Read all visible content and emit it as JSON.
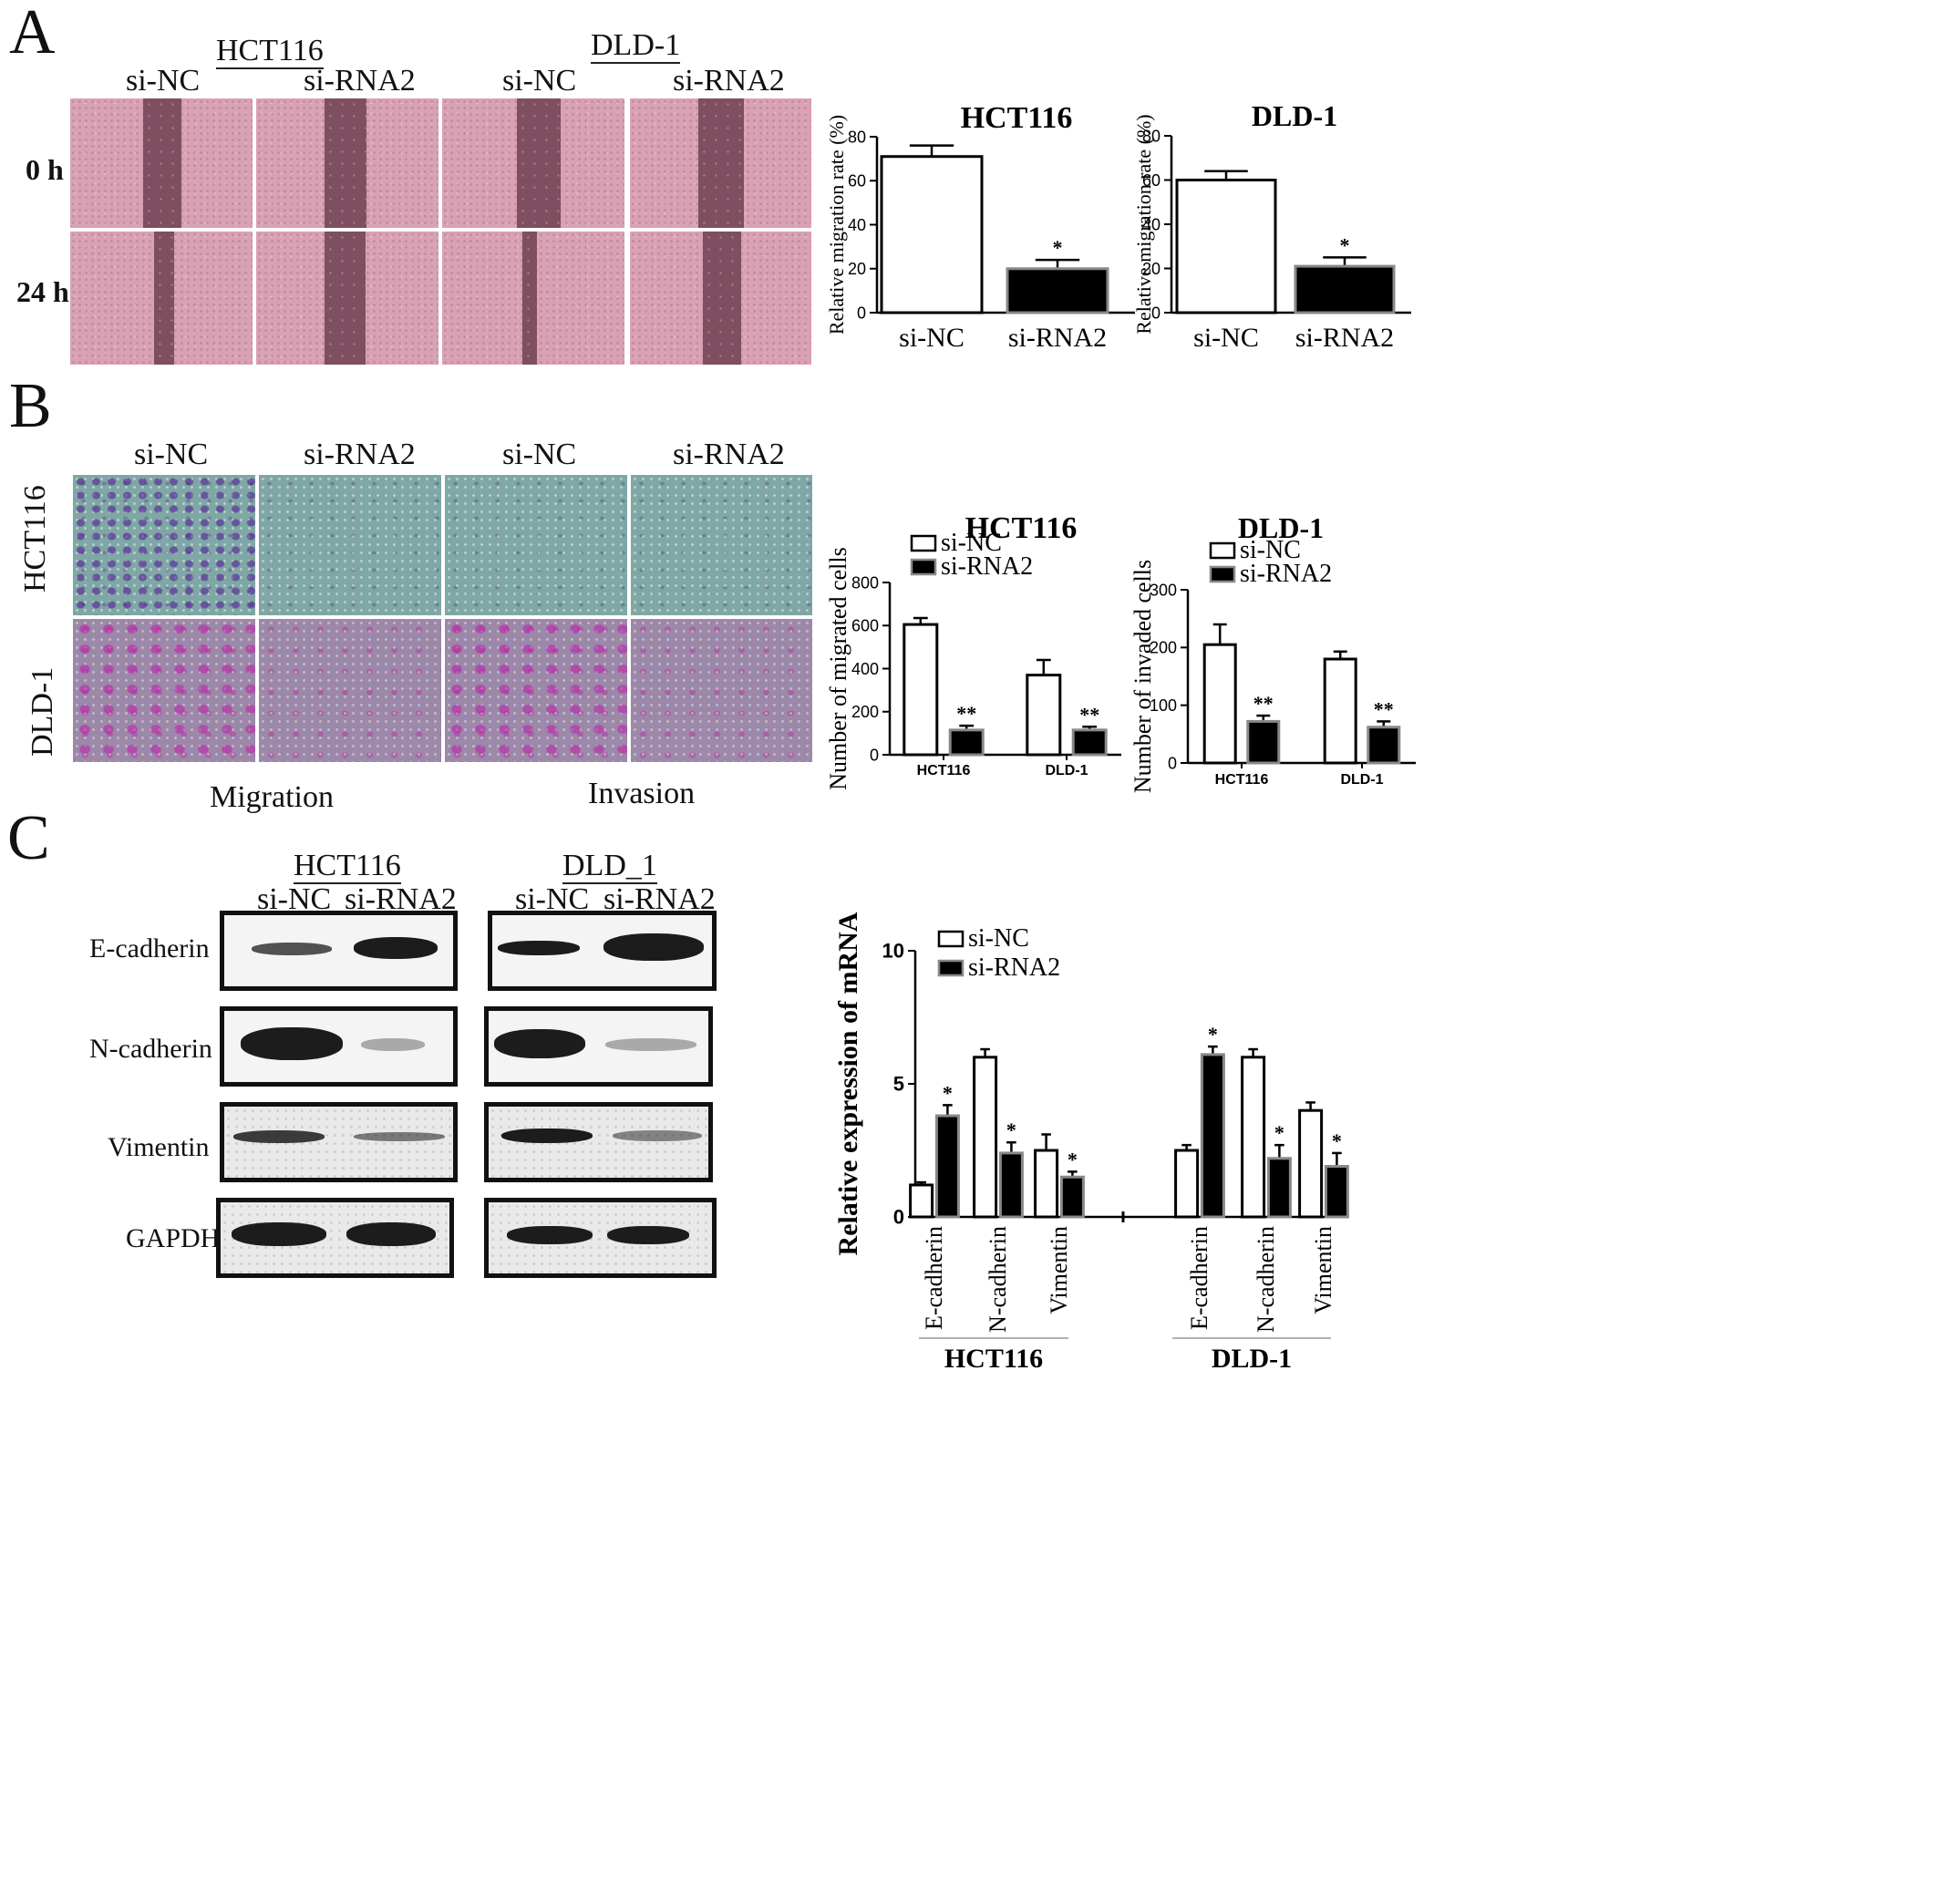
{
  "panelA": {
    "letter": "A",
    "group1": "HCT116",
    "group2": "DLD-1",
    "col_labels": [
      "si-NC",
      "si-RNA2",
      "si-NC",
      "si-RNA2"
    ],
    "row_labels": [
      "0 h",
      "24 h"
    ]
  },
  "panelB": {
    "letter": "B",
    "col_labels": [
      "si-NC",
      "si-RNA2",
      "si-NC",
      "si-RNA2"
    ],
    "row_labels": [
      "HCT116",
      "DLD-1"
    ],
    "bottom_labels": [
      "Migration",
      "Invasion"
    ]
  },
  "panelC": {
    "letter": "C",
    "group1": "HCT116",
    "group2": "DLD_1",
    "col_labels": [
      "si-NC",
      "si-RNA2",
      "si-NC",
      "si-RNA2"
    ],
    "proteins": [
      "E-cadherin",
      "N-cadherin",
      "Vimentin",
      "GAPDH"
    ]
  },
  "chart_data": [
    {
      "type": "bar",
      "title": "HCT116",
      "ylabel": "Relative migration rate (%)",
      "categories": [
        "si-NC",
        "si-RNA2"
      ],
      "values": [
        71,
        20
      ],
      "errors": [
        5,
        4
      ],
      "bar_colors": [
        "#ffffff",
        "#000000"
      ],
      "annotations": [
        "",
        "*"
      ],
      "ylim": [
        0,
        80
      ],
      "yticks": [
        "0",
        "20",
        "40",
        "60",
        "80"
      ]
    },
    {
      "type": "bar",
      "title": "DLD-1",
      "ylabel": "Relative migration rate (%)",
      "categories": [
        "si-NC",
        "si-RNA2"
      ],
      "values": [
        60,
        21
      ],
      "errors": [
        4,
        4
      ],
      "bar_colors": [
        "#ffffff",
        "#000000"
      ],
      "annotations": [
        "",
        "*"
      ],
      "ylim": [
        0,
        80
      ],
      "yticks": [
        "0",
        "20",
        "40",
        "60",
        "80"
      ]
    },
    {
      "type": "bar",
      "title": "HCT116",
      "ylabel": "Number of migrated cells",
      "categories": [
        "HCT116",
        "DLD-1"
      ],
      "series": [
        {
          "name": "si-NC",
          "values": [
            605,
            370
          ],
          "errors": [
            30,
            70
          ],
          "annotations": [
            "",
            ""
          ]
        },
        {
          "name": "si-RNA2",
          "values": [
            115,
            115
          ],
          "errors": [
            20,
            15
          ],
          "annotations": [
            "**",
            "**"
          ]
        }
      ],
      "ylim": [
        0,
        800
      ],
      "yticks": [
        "0",
        "200",
        "400",
        "600",
        "800"
      ],
      "legend": "top-left"
    },
    {
      "type": "bar",
      "title": "DLD-1",
      "ylabel": "Number of invaded cells",
      "categories": [
        "HCT116",
        "DLD-1"
      ],
      "series": [
        {
          "name": "si-NC",
          "values": [
            205,
            180
          ],
          "errors": [
            35,
            13
          ],
          "annotations": [
            "",
            ""
          ]
        },
        {
          "name": "si-RNA2",
          "values": [
            72,
            62
          ],
          "errors": [
            10,
            10
          ],
          "annotations": [
            "**",
            "**"
          ]
        }
      ],
      "ylim": [
        0,
        300
      ],
      "yticks": [
        "0",
        "100",
        "200",
        "300"
      ],
      "legend": "top-left"
    },
    {
      "type": "bar",
      "ylabel": "Relative expression of mRNA",
      "categories": [
        "E-cadherin",
        "N-cadherin",
        "Vimentin",
        "E-cadherin",
        "N-cadherin",
        "Vimentin"
      ],
      "groups": [
        "HCT116",
        "DLD-1"
      ],
      "series": [
        {
          "name": "si-NC",
          "values": [
            1.2,
            6.0,
            2.5,
            2.5,
            6.0,
            4.0
          ],
          "errors": [
            0.1,
            0.3,
            0.6,
            0.2,
            0.3,
            0.3
          ],
          "annotations": [
            "",
            "",
            "",
            "",
            "",
            ""
          ]
        },
        {
          "name": "si-RNA2",
          "values": [
            3.8,
            2.4,
            1.5,
            6.1,
            2.2,
            1.9
          ],
          "errors": [
            0.4,
            0.4,
            0.2,
            0.3,
            0.5,
            0.5
          ],
          "annotations": [
            "*",
            "*",
            "*",
            "*",
            "*",
            "*"
          ]
        }
      ],
      "ylim": [
        0,
        10
      ],
      "yticks": [
        "0",
        "5",
        "10"
      ],
      "legend": "top-left"
    }
  ]
}
